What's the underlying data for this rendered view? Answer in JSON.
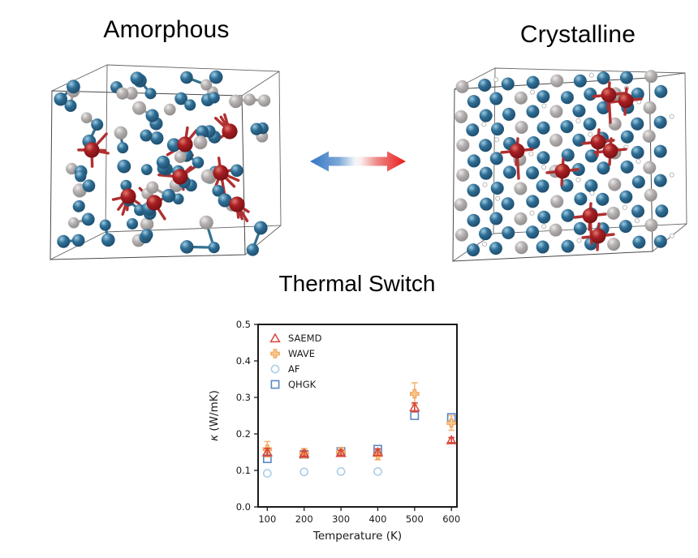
{
  "panels": {
    "amorphous": {
      "title": "Amorphous"
    },
    "crystalline": {
      "title": "Crystalline"
    }
  },
  "arrow": {
    "left_color": "#3376c3",
    "right_color": "#e81a1a"
  },
  "structure_colors": {
    "blue_atom": "#2e6e96",
    "gray_atom": "#b5b0b0",
    "red_atom": "#a81f23",
    "blue_bond": "#35708f",
    "gray_bond": "#a5a0a0",
    "red_bond": "#b03030",
    "box_edge": "#4a4a4a"
  },
  "chart_data": {
    "type": "scatter",
    "title": "Thermal Switch",
    "xlabel": "Temperature (K)",
    "ylabel_symbol": "κ",
    "ylabel_units": " (W/mK)",
    "xlim": [
      75,
      615
    ],
    "ylim": [
      0.0,
      0.5
    ],
    "xticks": [
      100,
      200,
      300,
      400,
      500,
      600
    ],
    "yticks": [
      0.0,
      0.1,
      0.2,
      0.3,
      0.4,
      0.5
    ],
    "grid": false,
    "legend_position": "upper left",
    "x": [
      100,
      200,
      300,
      400,
      500,
      600
    ],
    "series": [
      {
        "name": "SAEMD",
        "marker": "triangle",
        "color": "#d9453a",
        "values": [
          0.15,
          0.146,
          0.148,
          0.15,
          0.273,
          0.183
        ],
        "errors": [
          0.01,
          0.007,
          0.007,
          0.009,
          0.012,
          0.007
        ]
      },
      {
        "name": "WAVE",
        "marker": "plus-filled",
        "color": "#eda15a",
        "fill": "#f9c98c",
        "error_color": "#f5b97a",
        "values": [
          0.158,
          0.147,
          0.151,
          0.142,
          0.31,
          0.23
        ],
        "errors": [
          0.021,
          0.013,
          0.011,
          0.013,
          0.03,
          0.02
        ]
      },
      {
        "name": "AF",
        "marker": "circle",
        "color": "#a6cbe5",
        "values": [
          0.092,
          0.096,
          0.097,
          0.097,
          null,
          null
        ],
        "errors": null
      },
      {
        "name": "QHGK",
        "marker": "square",
        "color": "#5b87c2",
        "values": [
          0.132,
          0.144,
          0.152,
          0.158,
          0.25,
          0.245
        ],
        "errors": null
      }
    ]
  }
}
